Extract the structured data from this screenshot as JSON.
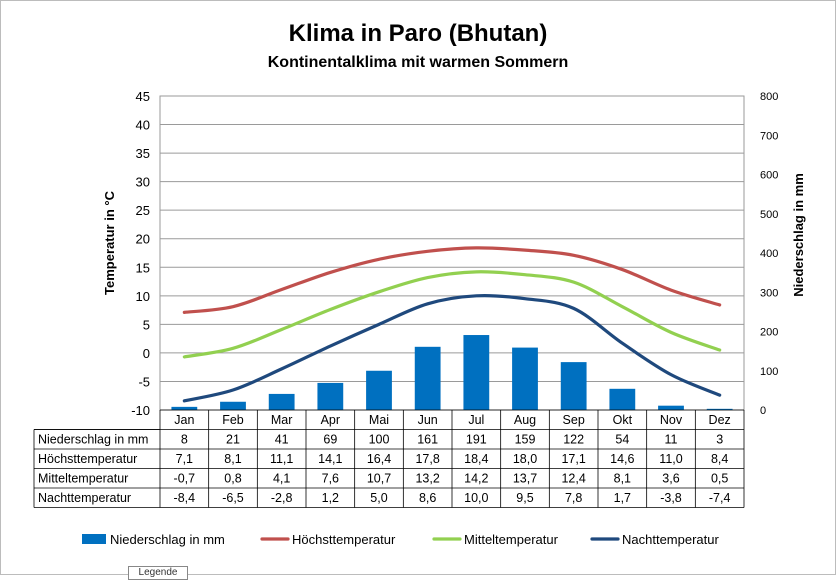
{
  "chart_data": {
    "type": "bar+line",
    "title": "Klima in Paro (Bhutan)",
    "subtitle": "Kontinentalklima mit warmen Sommern",
    "ylabel_left": "Temperatur in °C",
    "ylabel_right": "Niederschlag in mm",
    "ylim_left": [
      -10,
      45
    ],
    "ylim_right": [
      0,
      800
    ],
    "yticks_left": [
      45,
      40,
      35,
      30,
      25,
      20,
      15,
      10,
      5,
      0,
      -5,
      -10
    ],
    "yticks_right": [
      800,
      700,
      600,
      500,
      400,
      300,
      200,
      100,
      0
    ],
    "categories": [
      "Jan",
      "Feb",
      "Mar",
      "Apr",
      "Mai",
      "Jun",
      "Jul",
      "Aug",
      "Sep",
      "Okt",
      "Nov",
      "Dez"
    ],
    "grid": true,
    "legend_position": "bottom",
    "series": [
      {
        "name": "Niederschlag in mm",
        "kind": "bar",
        "axis": "right",
        "color": "#0070c0",
        "values": [
          8,
          21,
          41,
          69,
          100,
          161,
          191,
          159,
          122,
          54,
          11,
          3
        ],
        "labels": [
          "8",
          "21",
          "41",
          "69",
          "100",
          "161",
          "191",
          "159",
          "122",
          "54",
          "11",
          "3"
        ]
      },
      {
        "name": "Höchsttemperatur",
        "kind": "line",
        "axis": "left",
        "color": "#c0504d",
        "values": [
          7.1,
          8.1,
          11.1,
          14.1,
          16.4,
          17.8,
          18.4,
          18.0,
          17.1,
          14.6,
          11.0,
          8.4
        ],
        "labels": [
          "7,1",
          "8,1",
          "11,1",
          "14,1",
          "16,4",
          "17,8",
          "18,4",
          "18,0",
          "17,1",
          "14,6",
          "11,0",
          "8,4"
        ]
      },
      {
        "name": "Mitteltemperatur",
        "kind": "line",
        "axis": "left",
        "color": "#92d050",
        "values": [
          -0.7,
          0.8,
          4.1,
          7.6,
          10.7,
          13.2,
          14.2,
          13.7,
          12.4,
          8.1,
          3.6,
          0.5
        ],
        "labels": [
          "-0,7",
          "0,8",
          "4,1",
          "7,6",
          "10,7",
          "13,2",
          "14,2",
          "13,7",
          "12,4",
          "8,1",
          "3,6",
          "0,5"
        ]
      },
      {
        "name": "Nachttemperatur",
        "kind": "line",
        "axis": "left",
        "color": "#1f497d",
        "values": [
          -8.4,
          -6.5,
          -2.8,
          1.2,
          5.0,
          8.6,
          10.0,
          9.5,
          7.8,
          1.7,
          -3.8,
          -7.4
        ],
        "labels": [
          "-8,4",
          "-6,5",
          "-2,8",
          "1,2",
          "5,0",
          "8,6",
          "10,0",
          "9,5",
          "7,8",
          "1,7",
          "-3,8",
          "-7,4"
        ]
      }
    ]
  },
  "overlay": {
    "legend_tab": "Legende"
  }
}
